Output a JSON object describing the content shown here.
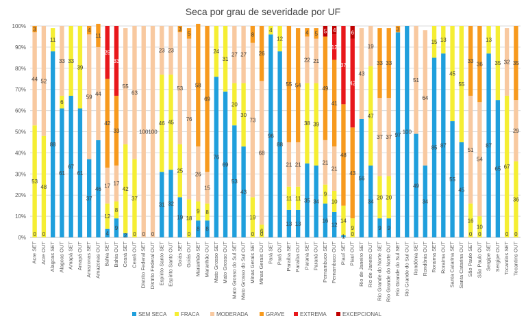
{
  "chart_data": {
    "type": "bar",
    "stacked": true,
    "title": "Seca por grau de severidade por UF",
    "ylim": [
      0,
      100
    ],
    "y_ticks": [
      "0%",
      "10%",
      "20%",
      "30%",
      "40%",
      "50%",
      "60%",
      "70%",
      "80%",
      "90%",
      "100%"
    ],
    "grid": true,
    "legend_position": "bottom",
    "categories": [
      "Acre SET",
      "Acre OUT",
      "Alagoas SET",
      "Alagoas OUT",
      "Amapá SET",
      "Amapá OUT",
      "Amazonas SET",
      "Amazonas OUT",
      "Bahia SET",
      "Bahia OUT",
      "Ceará SET",
      "Ceará OUT",
      "Distrito Federal SET",
      "Distrito Federal OUT",
      "Espírito Santo SET",
      "Espírito Santo OUT",
      "Goiás SET",
      "Goiás OUT",
      "Maranhão SET",
      "Maranhão OUT",
      "Mato Grosso SET",
      "Mato Grosso OUT",
      "Mato Grosso do Sul SET",
      "Mato Grosso do Sul OUT",
      "Minas Gerais SET",
      "Minas Gerais OUT",
      "Pará SET",
      "Pará OUT",
      "Paraíba SET",
      "Paraíba OUT",
      "Paraná SET",
      "Paraná OUT",
      "Pernambuco SET",
      "Pernambuco OUT",
      "Piauí SET",
      "Piauí OUT",
      "Rio de Janeiro SET",
      "Rio de Janeiro OUT",
      "Rio Grande do Norte SET",
      "Rio Grande do Norte OUT",
      "Rio Grande do Sul SET",
      "Rio Grande do Sul OUT",
      "Rondônia SET",
      "Rondônia OUT",
      "Roraima SET",
      "Roraima OUT",
      "Santa Catarina SET",
      "Santa Catarina OUT",
      "São Paulo SET",
      "São Paulo OUT",
      "Sergipe SET",
      "Sergipe OUT",
      "Tocantins SET",
      "Tocantins OUT"
    ],
    "series": [
      {
        "name": "SEM SECA",
        "color": "#1f9fdc",
        "values": [
          0,
          0,
          88,
          61,
          67,
          61,
          37,
          46,
          4,
          9,
          2,
          0,
          0,
          0,
          31,
          32,
          19,
          0,
          8,
          8,
          76,
          69,
          53,
          43,
          0,
          0,
          96,
          88,
          13,
          13,
          35,
          34,
          16,
          12,
          1,
          0,
          56,
          34,
          9,
          9,
          97,
          100,
          49,
          34,
          85,
          87,
          55,
          45,
          0,
          0,
          87,
          65,
          0,
          0
        ]
      },
      {
        "name": "FRACA",
        "color": "#f5ee33",
        "values": [
          53,
          48,
          11,
          6,
          33,
          39,
          0,
          0,
          12,
          8,
          42,
          37,
          0,
          0,
          46,
          45,
          25,
          18,
          9,
          8,
          24,
          31,
          20,
          30,
          19,
          6,
          4,
          12,
          11,
          11,
          38,
          39,
          9,
          10,
          14,
          9,
          0,
          47,
          20,
          20,
          0,
          0,
          0,
          0,
          15,
          13,
          45,
          55,
          16,
          10,
          13,
          35,
          67,
          36
        ]
      },
      {
        "name": "MODERADA",
        "color": "#f8c9a0",
        "values": [
          44,
          52,
          0,
          33,
          0,
          0,
          59,
          44,
          17,
          17,
          55,
          63,
          100,
          100,
          23,
          23,
          53,
          76,
          26,
          15,
          0,
          0,
          27,
          27,
          73,
          68,
          0,
          0,
          21,
          21,
          22,
          21,
          21,
          21,
          0,
          0,
          43,
          19,
          37,
          37,
          0,
          0,
          51,
          64,
          0,
          0,
          0,
          0,
          51,
          54,
          0,
          0,
          32,
          29
        ]
      },
      {
        "name": "GRAVE",
        "color": "#f79a1e",
        "values": [
          3,
          0,
          0,
          0,
          0,
          0,
          4,
          11,
          42,
          33,
          0,
          0,
          0,
          0,
          0,
          0,
          3,
          5,
          58,
          69,
          0,
          0,
          0,
          0,
          8,
          26,
          0,
          0,
          55,
          54,
          4,
          5,
          49,
          41,
          48,
          43,
          0,
          0,
          33,
          33,
          3,
          0,
          0,
          0,
          0,
          0,
          0,
          0,
          33,
          36,
          0,
          0,
          0,
          35
        ]
      },
      {
        "name": "EXTREMA",
        "color": "#e8171b",
        "values": [
          0,
          0,
          0,
          0,
          0,
          0,
          0,
          0,
          25,
          33,
          0,
          0,
          0,
          0,
          0,
          0,
          0,
          0,
          0,
          0,
          0,
          0,
          0,
          0,
          0,
          0,
          0,
          0,
          0,
          0,
          0,
          0,
          0,
          12,
          37,
          42,
          0,
          0,
          0,
          0,
          0,
          0,
          0,
          0,
          0,
          0,
          0,
          0,
          0,
          0,
          0,
          0,
          0,
          0
        ]
      },
      {
        "name": "EXCEPCIONAL",
        "color": "#c00000",
        "values": [
          0,
          0,
          0,
          0,
          0,
          0,
          0,
          0,
          0,
          0,
          0,
          0,
          0,
          0,
          0,
          0,
          0,
          0,
          0,
          0,
          0,
          0,
          0,
          0,
          0,
          0,
          0,
          0,
          0,
          0,
          0,
          0,
          5,
          4,
          0,
          6,
          0,
          0,
          0,
          0,
          0,
          0,
          0,
          0,
          0,
          0,
          0,
          0,
          0,
          0,
          0,
          0,
          0,
          0
        ]
      }
    ]
  }
}
